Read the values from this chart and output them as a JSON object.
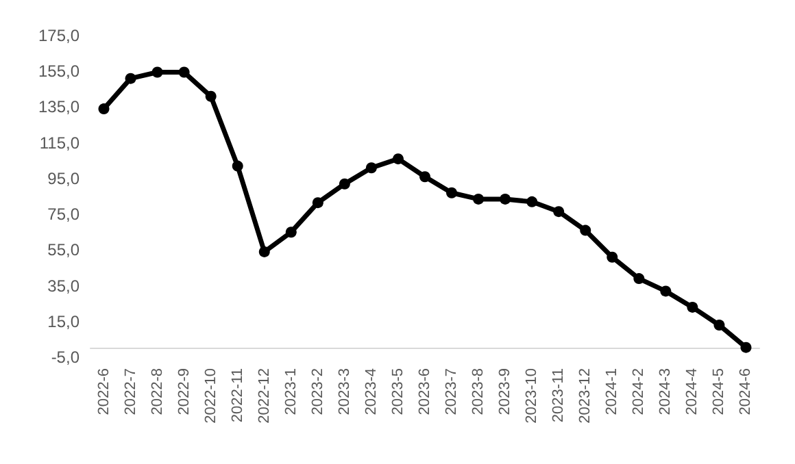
{
  "chart_data": {
    "type": "line",
    "categories": [
      "2022-6",
      "2022-7",
      "2022-8",
      "2022-9",
      "2022-10",
      "2022-11",
      "2022-12",
      "2023-1",
      "2023-2",
      "2023-3",
      "2023-4",
      "2023-5",
      "2023-6",
      "2023-7",
      "2023-8",
      "2023-9",
      "2023-10",
      "2023-11",
      "2023-12",
      "2024-1",
      "2024-2",
      "2024-3",
      "2024-4",
      "2024-5",
      "2024-6"
    ],
    "series": [
      {
        "color": "#000000",
        "values": [
          134,
          151,
          154.5,
          154.5,
          141,
          102,
          54,
          65,
          81.5,
          92,
          101,
          106,
          96,
          87,
          83.5,
          83.5,
          82,
          76.5,
          66,
          51,
          39,
          32,
          23,
          13,
          0.5
        ]
      }
    ],
    "ylim": [
      -5,
      175
    ],
    "yticks": [
      {
        "value": -5,
        "label": "-5,0"
      },
      {
        "value": 15,
        "label": "15,0"
      },
      {
        "value": 35,
        "label": "35,0"
      },
      {
        "value": 55,
        "label": "55,0"
      },
      {
        "value": 75,
        "label": "75,0"
      },
      {
        "value": 95,
        "label": "95,0"
      },
      {
        "value": 115,
        "label": "115,0"
      },
      {
        "value": 135,
        "label": "135,0"
      },
      {
        "value": 155,
        "label": "155,0"
      },
      {
        "value": 175,
        "label": "175,0"
      }
    ],
    "grid": false,
    "marker": "circle",
    "line_style": "solid"
  }
}
